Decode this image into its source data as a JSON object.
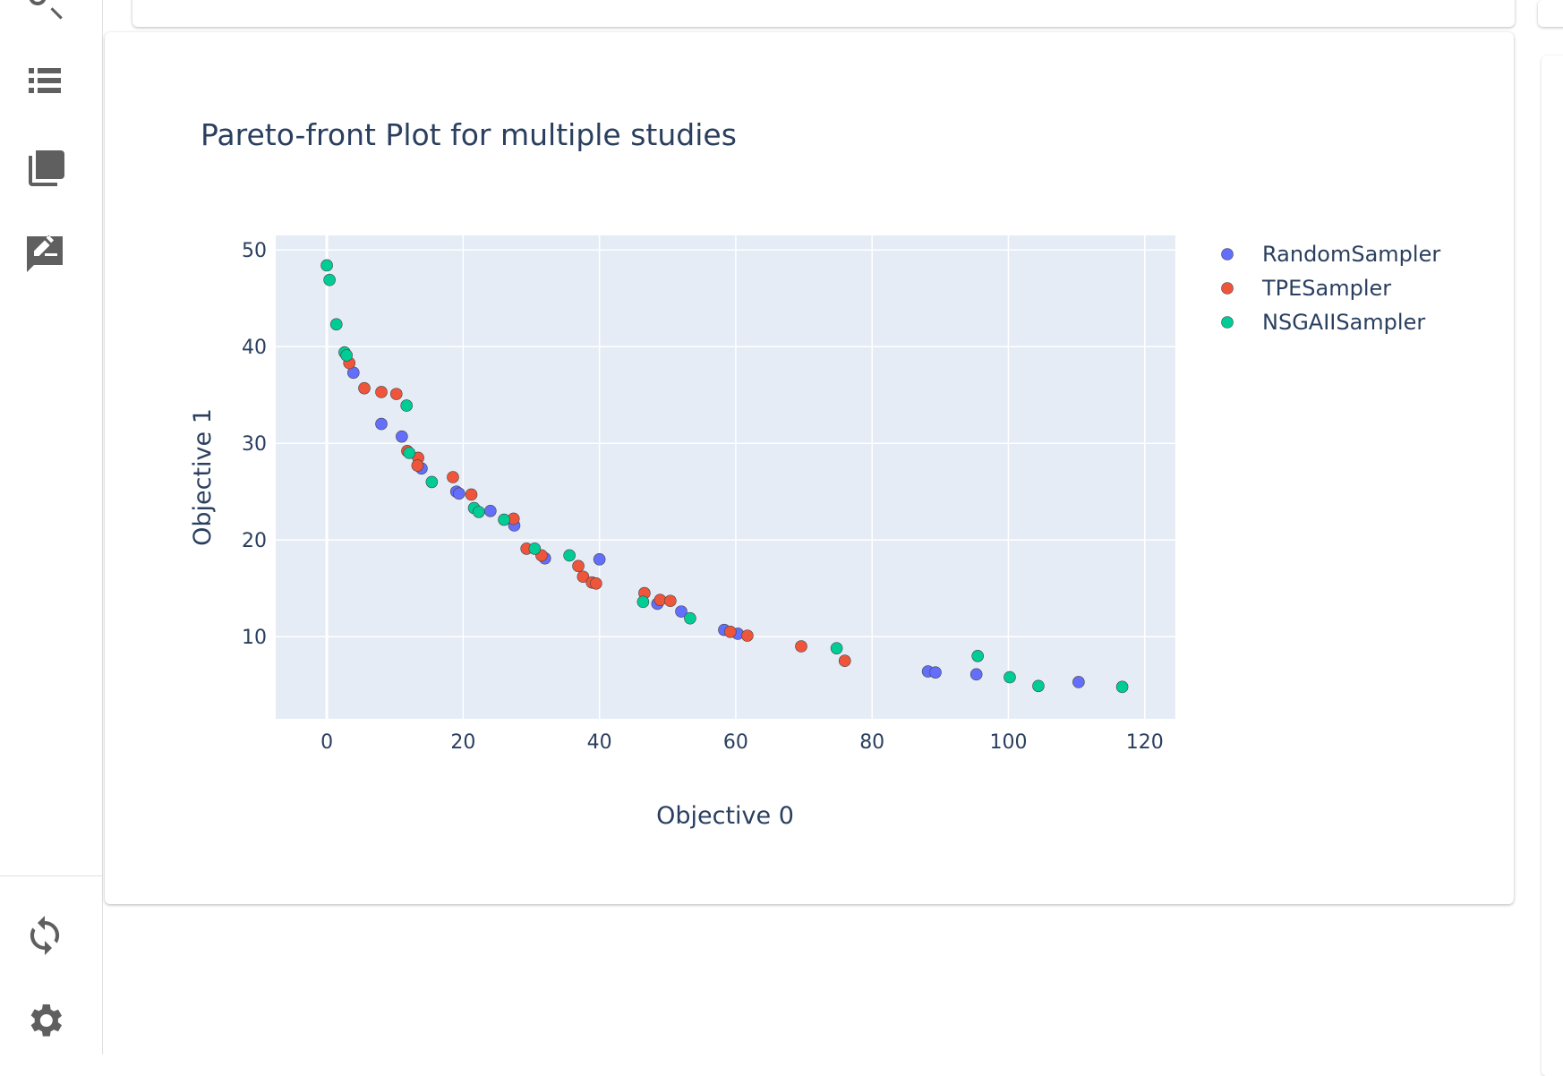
{
  "sidebar": {
    "icons": [
      "search-results-icon",
      "list-icon",
      "table-icon",
      "note-icon",
      "refresh-icon",
      "settings-icon"
    ]
  },
  "colors": {
    "random": "#636efa",
    "tpe": "#EF553B",
    "nsga": "#00cc96",
    "plot_bg": "#e5ecf6"
  },
  "chart_data": {
    "type": "scatter",
    "title": "Pareto-front Plot for multiple studies",
    "xlabel": "Objective 0",
    "ylabel": "Objective 1",
    "xlim": [
      -7.5,
      124.5
    ],
    "ylim": [
      1.5,
      51.5
    ],
    "xticks": [
      0,
      20,
      40,
      60,
      80,
      100,
      120
    ],
    "yticks": [
      10,
      20,
      30,
      40,
      50
    ],
    "grid": true,
    "legend_position": "top-right",
    "series": [
      {
        "name": "RandomSampler",
        "color": "#636efa",
        "points": [
          [
            3.9,
            37.3
          ],
          [
            8,
            32
          ],
          [
            11,
            30.7
          ],
          [
            13.9,
            27.4
          ],
          [
            19,
            25
          ],
          [
            19.4,
            24.8
          ],
          [
            24,
            23
          ],
          [
            27.5,
            21.5
          ],
          [
            32,
            18.1
          ],
          [
            40,
            18
          ],
          [
            48.5,
            13.4
          ],
          [
            52,
            12.6
          ],
          [
            58.3,
            10.7
          ],
          [
            60.3,
            10.3
          ],
          [
            88.2,
            6.4
          ],
          [
            89.3,
            6.3
          ],
          [
            95.3,
            6.1
          ],
          [
            110.3,
            5.3
          ]
        ]
      },
      {
        "name": "TPESampler",
        "color": "#EF553B",
        "points": [
          [
            3.3,
            38.3
          ],
          [
            5.5,
            35.7
          ],
          [
            8,
            35.3
          ],
          [
            10.2,
            35.1
          ],
          [
            11.8,
            29.2
          ],
          [
            13.4,
            28.5
          ],
          [
            13.3,
            27.7
          ],
          [
            18.5,
            26.5
          ],
          [
            21.2,
            24.7
          ],
          [
            27.4,
            22.2
          ],
          [
            29.3,
            19.1
          ],
          [
            31.5,
            18.4
          ],
          [
            36.9,
            17.3
          ],
          [
            37.6,
            16.2
          ],
          [
            38.9,
            15.6
          ],
          [
            39.5,
            15.5
          ],
          [
            46.6,
            14.5
          ],
          [
            48.9,
            13.8
          ],
          [
            50.4,
            13.7
          ],
          [
            59.2,
            10.5
          ],
          [
            61.7,
            10.1
          ],
          [
            69.6,
            9
          ],
          [
            76,
            7.5
          ]
        ]
      },
      {
        "name": "NSGAIISampler",
        "color": "#00cc96",
        "points": [
          [
            0,
            48.4
          ],
          [
            0.4,
            46.9
          ],
          [
            1.4,
            42.3
          ],
          [
            2.6,
            39.4
          ],
          [
            2.9,
            39.1
          ],
          [
            11.7,
            33.9
          ],
          [
            12.1,
            29
          ],
          [
            15.4,
            26
          ],
          [
            21.6,
            23.3
          ],
          [
            22.3,
            22.9
          ],
          [
            26,
            22.1
          ],
          [
            30.5,
            19.1
          ],
          [
            35.6,
            18.4
          ],
          [
            46.4,
            13.6
          ],
          [
            53.3,
            11.9
          ],
          [
            74.8,
            8.8
          ],
          [
            95.5,
            8
          ],
          [
            100.2,
            5.8
          ],
          [
            104.4,
            4.9
          ],
          [
            116.7,
            4.8
          ]
        ]
      }
    ]
  }
}
